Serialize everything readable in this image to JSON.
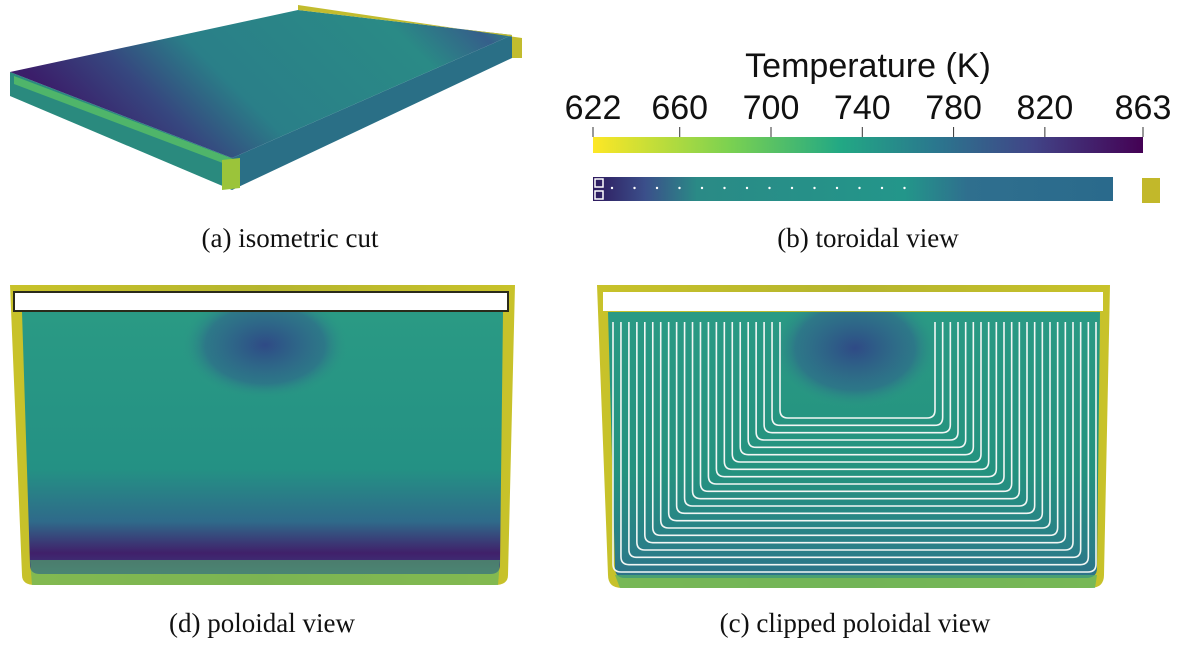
{
  "panels": [
    {
      "caption": "(a) isometric cut"
    },
    {
      "caption": "(b) toroidal view"
    },
    {
      "caption": "(d) poloidal view"
    },
    {
      "caption": "(c) clipped poloidal view"
    }
  ],
  "colorbar": {
    "title": "Temperature (K)",
    "ticks": [
      622,
      660,
      700,
      740,
      780,
      820,
      863
    ]
  }
}
